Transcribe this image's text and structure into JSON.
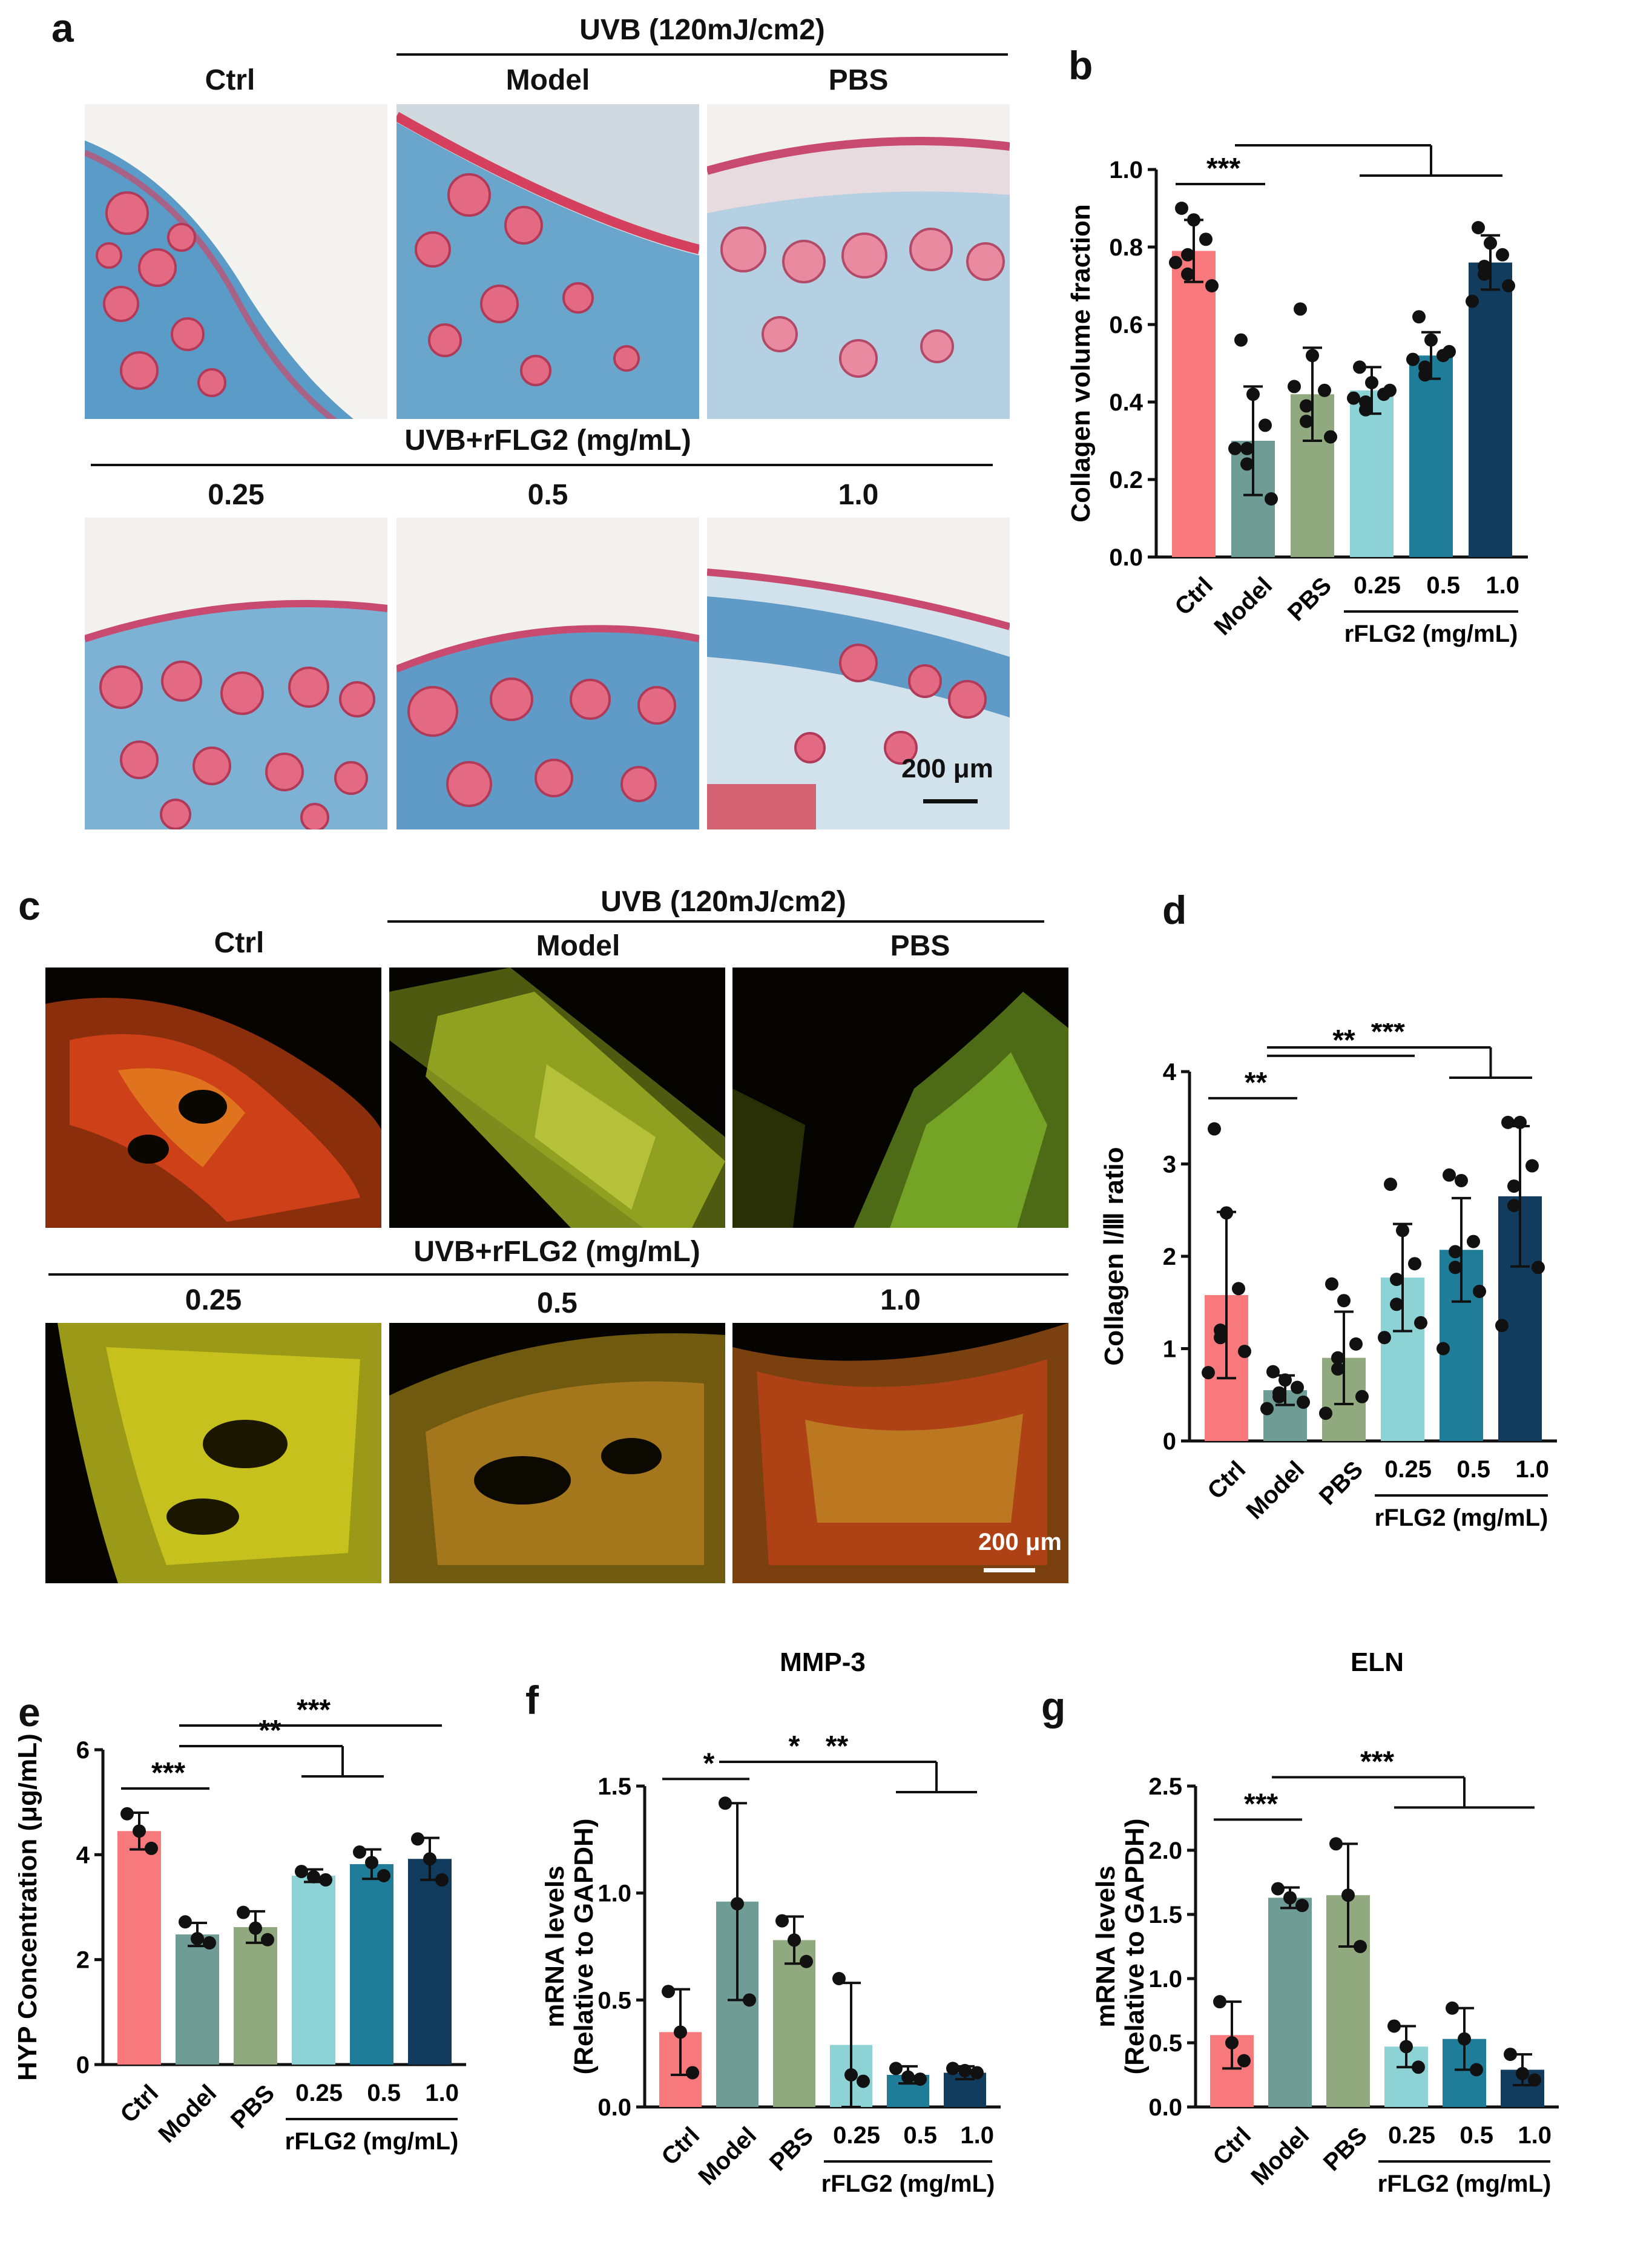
{
  "panels": {
    "a": {
      "letter": "a",
      "top_header": "UVB (120mJ/cm2)",
      "col_labels": [
        "Ctrl",
        "Model",
        "PBS"
      ],
      "bottom_header": "UVB+rFLG2 (mg/mL)",
      "bottom_col_labels": [
        "0.25",
        "0.5",
        "1.0"
      ],
      "scale_bar": "200 μm"
    },
    "b": {
      "letter": "b"
    },
    "c": {
      "letter": "c",
      "top_header": "UVB (120mJ/cm2)",
      "col_labels": [
        "Ctrl",
        "Model",
        "PBS"
      ],
      "bottom_header": "UVB+rFLG2 (mg/mL)",
      "bottom_col_labels": [
        "0.25",
        "0.5",
        "1.0"
      ],
      "scale_bar": "200 μm"
    },
    "d": {
      "letter": "d"
    },
    "e": {
      "letter": "e"
    },
    "f": {
      "letter": "f"
    },
    "g": {
      "letter": "g"
    }
  },
  "colors": {
    "Ctrl": "#f8797c",
    "Model": "#6f9c95",
    "PBS": "#91a97e",
    "0.25": "#8dd3d6",
    "0.5": "#1f7d99",
    "1.0": "#123c5e",
    "masson_collagen": "#4a8fc4",
    "masson_keratin": "#d9556e",
    "psr_dark": "#050400",
    "psr_red": "#d9431a",
    "psr_yellow": "#d8d21e",
    "psr_green": "#7fb12a"
  },
  "chart_data": [
    {
      "id": "b",
      "type": "bar",
      "ylabel": "Collagen volume fraction",
      "ylim": [
        0,
        1.0
      ],
      "yticks": [
        "0.0",
        "0.2",
        "0.4",
        "0.6",
        "0.8",
        "1.0"
      ],
      "categories": [
        "Ctrl",
        "Model",
        "PBS",
        "0.25",
        "0.5",
        "1.0"
      ],
      "group_label": "rFLG2 (mg/mL)",
      "values": [
        0.79,
        0.3,
        0.42,
        0.43,
        0.52,
        0.76
      ],
      "errors": [
        0.08,
        0.14,
        0.12,
        0.06,
        0.06,
        0.07
      ],
      "points": [
        [
          0.9,
          0.87,
          0.82,
          0.78,
          0.73,
          0.7,
          0.76
        ],
        [
          0.56,
          0.42,
          0.34,
          0.28,
          0.24,
          0.15,
          0.28
        ],
        [
          0.64,
          0.52,
          0.43,
          0.39,
          0.35,
          0.31,
          0.44
        ],
        [
          0.49,
          0.45,
          0.42,
          0.4,
          0.38,
          0.43,
          0.41
        ],
        [
          0.62,
          0.56,
          0.52,
          0.49,
          0.47,
          0.53,
          0.51
        ],
        [
          0.85,
          0.81,
          0.78,
          0.75,
          0.73,
          0.7,
          0.66
        ]
      ],
      "significance": [
        {
          "label": "***",
          "from": 0,
          "to": 1
        },
        {
          "label": "***",
          "from": 1,
          "to": [
            3,
            5
          ]
        }
      ]
    },
    {
      "id": "d",
      "type": "bar",
      "ylabel": "Collagen Ⅰ/Ⅲ ratio",
      "ylim": [
        0,
        4
      ],
      "yticks": [
        "0",
        "1",
        "2",
        "3",
        "4"
      ],
      "categories": [
        "Ctrl",
        "Model",
        "PBS",
        "0.25",
        "0.5",
        "1.0"
      ],
      "group_label": "rFLG2 (mg/mL)",
      "values": [
        1.58,
        0.55,
        0.9,
        1.77,
        2.07,
        2.65
      ],
      "errors": [
        0.9,
        0.16,
        0.5,
        0.58,
        0.56,
        0.76
      ],
      "points": [
        [
          3.38,
          2.47,
          1.65,
          1.2,
          1.12,
          0.97,
          0.74
        ],
        [
          0.75,
          0.66,
          0.58,
          0.52,
          0.48,
          0.42,
          0.35
        ],
        [
          1.7,
          1.52,
          1.05,
          0.9,
          0.78,
          0.48,
          0.3
        ],
        [
          2.78,
          2.28,
          1.92,
          1.75,
          1.48,
          1.28,
          1.12
        ],
        [
          2.88,
          2.82,
          2.16,
          2.05,
          1.88,
          1.62,
          1.0
        ],
        [
          3.45,
          3.45,
          2.98,
          2.76,
          2.55,
          1.88,
          1.25
        ]
      ],
      "significance": [
        {
          "label": "**",
          "from": 0,
          "to": 1
        },
        {
          "label": "**",
          "from": 1,
          "to": 3
        },
        {
          "label": "***",
          "from": 1,
          "to": [
            4,
            5
          ]
        }
      ]
    },
    {
      "id": "e",
      "type": "bar",
      "ylabel": "HYP Concentration (μg/mL)",
      "ylim": [
        0,
        6
      ],
      "yticks": [
        "0",
        "2",
        "4",
        "6"
      ],
      "categories": [
        "Ctrl",
        "Model",
        "PBS",
        "0.25",
        "0.5",
        "1.0"
      ],
      "group_label": "rFLG2 (mg/mL)",
      "values": [
        4.45,
        2.48,
        2.62,
        3.6,
        3.82,
        3.92
      ],
      "errors": [
        0.35,
        0.22,
        0.3,
        0.12,
        0.28,
        0.4
      ],
      "points": [
        [
          4.78,
          4.45,
          4.12
        ],
        [
          2.72,
          2.4,
          2.32
        ],
        [
          2.9,
          2.6,
          2.38
        ],
        [
          3.68,
          3.58,
          3.52
        ],
        [
          4.05,
          3.85,
          3.6
        ],
        [
          4.3,
          3.92,
          3.52
        ]
      ],
      "significance": [
        {
          "label": "***",
          "from": 0,
          "to": 1
        },
        {
          "label": "**",
          "from": 1,
          "to": [
            3,
            4
          ]
        },
        {
          "label": "***",
          "from": 1,
          "to": 5
        }
      ]
    },
    {
      "id": "f",
      "type": "bar",
      "title": "MMP-3",
      "ylabel": "mRNA levels\n(Relative to GAPDH)",
      "ylim": [
        0,
        1.5
      ],
      "yticks": [
        "0.0",
        "0.5",
        "1.0",
        "1.5"
      ],
      "categories": [
        "Ctrl",
        "Model",
        "PBS",
        "0.25",
        "0.5",
        "1.0"
      ],
      "group_label": "rFLG2 (mg/mL)",
      "values": [
        0.35,
        0.96,
        0.78,
        0.29,
        0.15,
        0.16
      ],
      "errors": [
        0.2,
        0.46,
        0.11,
        0.29,
        0.04,
        0.03
      ],
      "points": [
        [
          0.54,
          0.35,
          0.16
        ],
        [
          1.42,
          0.95,
          0.5
        ],
        [
          0.87,
          0.78,
          0.68
        ],
        [
          0.6,
          0.15,
          0.12
        ],
        [
          0.18,
          0.14,
          0.13
        ],
        [
          0.18,
          0.17,
          0.16
        ]
      ],
      "significance": [
        {
          "label": "*",
          "from": 0,
          "to": 1
        },
        {
          "label": "*",
          "from": 1,
          "to": 3
        },
        {
          "label": "**",
          "from": 1,
          "to": [
            4,
            5
          ]
        }
      ]
    },
    {
      "id": "g",
      "type": "bar",
      "title": "ELN",
      "ylabel": "mRNA levels\n(Relative to GAPDH)",
      "ylim": [
        0,
        2.5
      ],
      "yticks": [
        "0.0",
        "0.5",
        "1.0",
        "1.5",
        "2.0",
        "2.5"
      ],
      "categories": [
        "Ctrl",
        "Model",
        "PBS",
        "0.25",
        "0.5",
        "1.0"
      ],
      "group_label": "rFLG2 (mg/mL)",
      "values": [
        0.56,
        1.63,
        1.65,
        0.47,
        0.53,
        0.29
      ],
      "errors": [
        0.26,
        0.08,
        0.4,
        0.16,
        0.24,
        0.12
      ],
      "points": [
        [
          0.82,
          0.5,
          0.36
        ],
        [
          1.7,
          1.63,
          1.57
        ],
        [
          2.05,
          1.65,
          1.25
        ],
        [
          0.63,
          0.47,
          0.31
        ],
        [
          0.77,
          0.53,
          0.29
        ],
        [
          0.41,
          0.26,
          0.21
        ]
      ],
      "significance": [
        {
          "label": "***",
          "from": 0,
          "to": 1
        },
        {
          "label": "***",
          "from": 1,
          "to": [
            3,
            5
          ]
        }
      ]
    }
  ]
}
